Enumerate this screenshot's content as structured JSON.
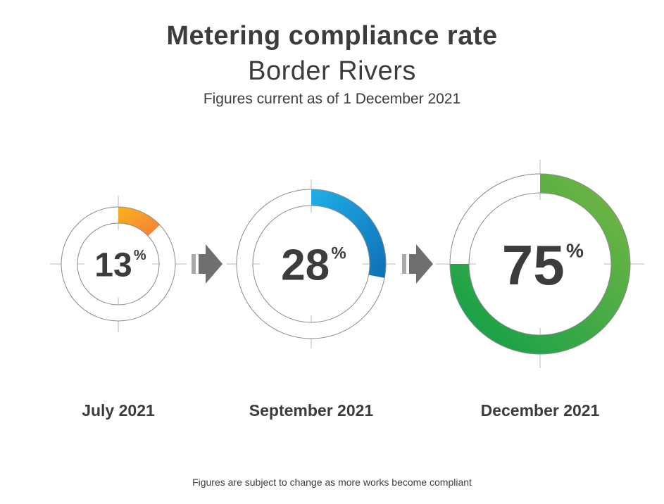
{
  "header": {
    "title": "Metering compliance rate",
    "subtitle": "Border Rivers",
    "caption": "Figures current as of 1 December 2021"
  },
  "footer": {
    "note": "Figures are subject to change as more works become compliant"
  },
  "percent_symbol": "%",
  "chart_data": {
    "type": "donut",
    "title": "Metering compliance rate",
    "subtitle": "Border Rivers",
    "categories": [
      "July 2021",
      "September 2021",
      "December 2021"
    ],
    "values": [
      13,
      28,
      75
    ],
    "value_labels": [
      "13",
      "28",
      "75"
    ],
    "unit": "%",
    "ylim": [
      0,
      100
    ],
    "colors": [
      {
        "from": "#f9b21c",
        "to": "#f47d3a"
      },
      {
        "from": "#1fb0e8",
        "to": "#0f6fb5"
      },
      {
        "from": "#0a9e4a",
        "to": "#7cb742"
      }
    ],
    "connector": "arrow"
  }
}
